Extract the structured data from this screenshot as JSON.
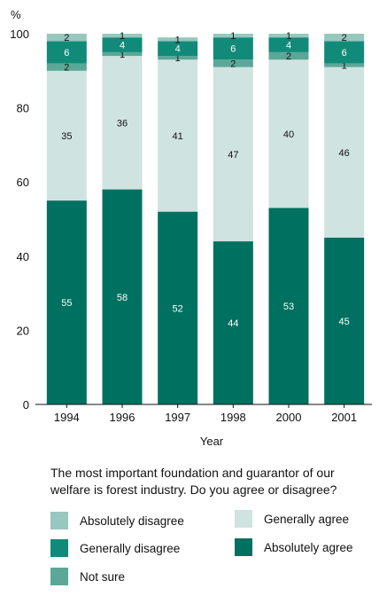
{
  "chart_data": {
    "type": "bar",
    "stacked": true,
    "y_unit_label": "%",
    "xlabel": "Year",
    "ylabel": "",
    "ylim": [
      0,
      100
    ],
    "yticks": [
      0,
      20,
      40,
      60,
      80,
      100
    ],
    "grid": false,
    "categories": [
      "1994",
      "1996",
      "1997",
      "1998",
      "2000",
      "2001"
    ],
    "series": [
      {
        "name": "Absolutely agree",
        "color": "#007060",
        "label_color": "#ffffff",
        "values": [
          55,
          58,
          52,
          44,
          53,
          45
        ]
      },
      {
        "name": "Generally agree",
        "color": "#cfe3e0",
        "label_color": "#111111",
        "values": [
          35,
          36,
          41,
          47,
          40,
          46
        ]
      },
      {
        "name": "Not sure",
        "color": "#5ba898",
        "label_color": "#111111",
        "values": [
          2,
          1,
          1,
          2,
          2,
          1
        ]
      },
      {
        "name": "Generally disagree",
        "color": "#128a7a",
        "label_color": "#ffffff",
        "values": [
          6,
          4,
          4,
          6,
          4,
          6
        ]
      },
      {
        "name": "Absolutely disagree",
        "color": "#96c8bd",
        "label_color": "#111111",
        "values": [
          2,
          1,
          1,
          1,
          1,
          2
        ]
      }
    ]
  },
  "question": "The most important foundation and guarantor of our welfare is forest industry. Do you agree or disagree?",
  "legend": [
    {
      "label": "Absolutely disagree",
      "color": "#96c8bd"
    },
    {
      "label": "Generally agree",
      "color": "#cfe3e0"
    },
    {
      "label": "Generally disagree",
      "color": "#128a7a"
    },
    {
      "label": "Absolutely agree",
      "color": "#007060"
    },
    {
      "label": "Not sure",
      "color": "#5ba898"
    }
  ]
}
